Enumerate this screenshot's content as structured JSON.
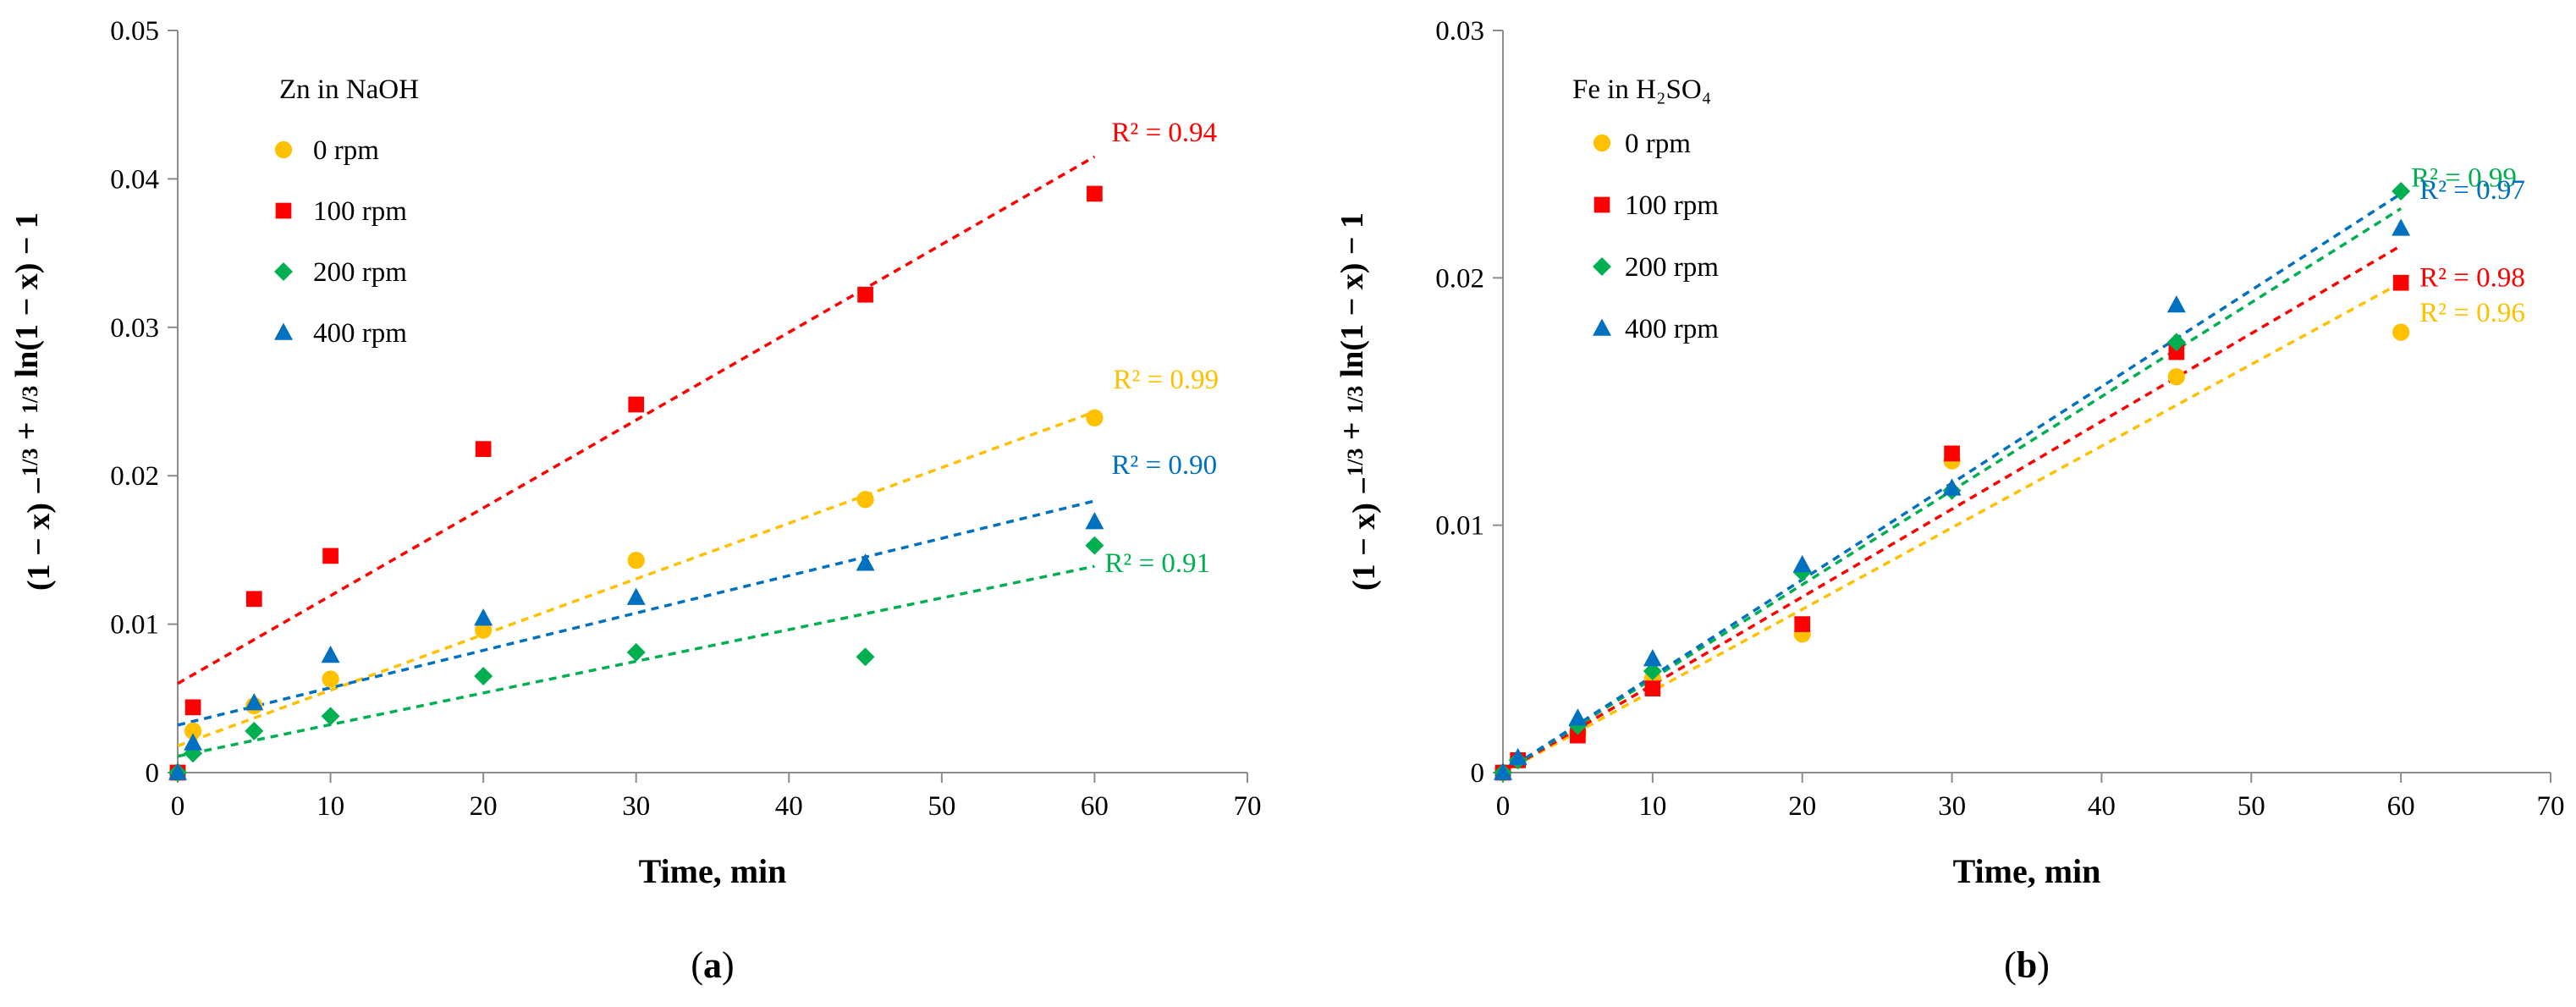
{
  "figure": {
    "panel_labels": [
      "(a)",
      "(b)"
    ]
  },
  "chart_data": [
    {
      "type": "scatter",
      "panel_label": "(a)",
      "legend_title": "Zn in NaOH",
      "xlabel": "Time, min",
      "ylabel": "(1 − x) −1/3 + 1/3 ln(1 − x) − 1",
      "xlim": [
        0,
        70
      ],
      "ylim": [
        0,
        0.05
      ],
      "xticks": [
        "0",
        "10",
        "20",
        "30",
        "40",
        "50",
        "60",
        "70"
      ],
      "yticks": [
        "0",
        "0.01",
        "0.02",
        "0.03",
        "0.04",
        "0.05"
      ],
      "x": [
        0,
        1,
        5,
        10,
        20,
        30,
        45,
        60
      ],
      "series": [
        {
          "name": "0 rpm",
          "marker": "circle",
          "color": "#FFC000",
          "values": [
            0,
            0.0028,
            0.0045,
            0.0063,
            0.0096,
            0.0143,
            0.0184,
            0.0239
          ],
          "trendline": [
            0.0018,
            0.0243
          ],
          "r2": "R² = 0.99"
        },
        {
          "name": "100 rpm",
          "marker": "square",
          "color": "#FF0000",
          "values": [
            0,
            0.0044,
            0.0117,
            0.0146,
            0.0218,
            0.0248,
            0.0322,
            0.039
          ],
          "trendline": [
            0.006,
            0.0415
          ],
          "r2": "R² = 0.94"
        },
        {
          "name": "200 rpm",
          "marker": "diamond",
          "color": "#00B050",
          "values": [
            0,
            0.0013,
            0.0028,
            0.0038,
            0.0065,
            0.0081,
            0.0078,
            0.0153
          ],
          "trendline": [
            0.0011,
            0.0139
          ],
          "r2": "R² = 0.91"
        },
        {
          "name": "400 rpm",
          "marker": "triangle",
          "color": "#0070C0",
          "values": [
            0,
            0.002,
            0.0047,
            0.0079,
            0.0104,
            0.0118,
            0.0141,
            0.0169
          ],
          "trendline": [
            0.0032,
            0.0183
          ],
          "r2": "R² = 0.90"
        }
      ]
    },
    {
      "type": "scatter",
      "panel_label": "(b)",
      "legend_title": "Fe in H₂SO₄",
      "xlabel": "Time, min",
      "ylabel": "(1 − x) −1/3 + 1/3 ln(1 − x) − 1",
      "xlim": [
        0,
        70
      ],
      "ylim": [
        0,
        0.03
      ],
      "xticks": [
        "0",
        "10",
        "20",
        "30",
        "40",
        "50",
        "60",
        "70"
      ],
      "yticks": [
        "0",
        "0.01",
        "0.02",
        "0.03"
      ],
      "x": [
        0,
        1,
        5,
        10,
        20,
        30,
        45,
        60
      ],
      "series": [
        {
          "name": "0 rpm",
          "marker": "circle",
          "color": "#FFC000",
          "values": [
            0,
            0.0005,
            0.0016,
            0.0038,
            0.0056,
            0.0126,
            0.016,
            0.0178
          ],
          "trendline": [
            0,
            0.0198
          ],
          "r2": "R² = 0.96"
        },
        {
          "name": "100 rpm",
          "marker": "square",
          "color": "#FF0000",
          "values": [
            0,
            0.0005,
            0.0015,
            0.0034,
            0.006,
            0.0129,
            0.017,
            0.0198
          ],
          "trendline": [
            0,
            0.0213
          ],
          "r2": "R² = 0.98"
        },
        {
          "name": "200 rpm",
          "marker": "diamond",
          "color": "#00B050",
          "values": [
            0,
            0.0005,
            0.0019,
            0.0041,
            0.0081,
            0.0114,
            0.0174,
            0.0235
          ],
          "trendline": [
            0,
            0.0228
          ],
          "r2": "R² = 0.99"
        },
        {
          "name": "400 rpm",
          "marker": "triangle",
          "color": "#0070C0",
          "values": [
            0,
            0.0006,
            0.0022,
            0.0046,
            0.0084,
            0.0115,
            0.0189,
            0.022
          ],
          "trendline": [
            0,
            0.0234
          ],
          "r2": "R² = 0.97"
        }
      ]
    }
  ]
}
